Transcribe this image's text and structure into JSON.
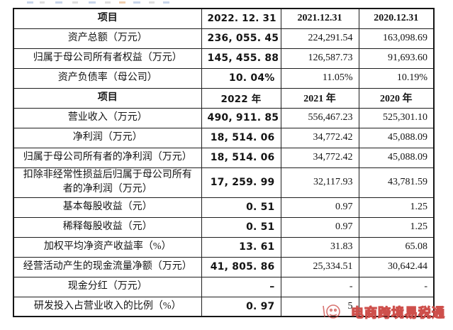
{
  "table": {
    "rows": [
      {
        "type": "head",
        "label": "项目",
        "v2022": "2022. 12. 31",
        "v2021": "2021.12.31",
        "v2020": "2020.12.31"
      },
      {
        "type": "data",
        "label": "资产总额（万元）",
        "v2022": "236, 055. 45",
        "v2021": "224,291.54",
        "v2020": "163,098.69"
      },
      {
        "type": "data",
        "label": "归属于母公司所有者权益（万元）",
        "v2022": "145, 455. 88",
        "v2021": "126,587.73",
        "v2020": "91,693.60"
      },
      {
        "type": "data",
        "label": "资产负债率（母公司）",
        "v2022": "10. 04%",
        "v2021": "11.05%",
        "v2020": "10.19%"
      },
      {
        "type": "head",
        "label": "项目",
        "v2022": "2022 年",
        "v2021": "2021 年",
        "v2020": "2020 年"
      },
      {
        "type": "data",
        "label": "营业收入（万元）",
        "v2022": "490, 911. 85",
        "v2021": "556,467.23",
        "v2020": "525,301.10"
      },
      {
        "type": "data",
        "label": "净利润（万元）",
        "v2022": "18, 514. 06",
        "v2021": "34,772.42",
        "v2020": "45,088.09"
      },
      {
        "type": "data",
        "label": "归属于母公司所有者的净利润（万元）",
        "v2022": "18, 514. 06",
        "v2021": "34,772.42",
        "v2020": "45,088.09"
      },
      {
        "type": "data",
        "tall": true,
        "label": "扣除非经常性损益后归属于母公司所有者的净利润（万元）",
        "v2022": "17, 259. 99",
        "v2021": "32,117.93",
        "v2020": "43,781.59"
      },
      {
        "type": "data",
        "label": "基本每股收益（元）",
        "v2022": "0. 51",
        "v2021": "0.97",
        "v2020": "1.25"
      },
      {
        "type": "data",
        "label": "稀释每股收益（元）",
        "v2022": "0. 51",
        "v2021": "0.97",
        "v2020": "1.25"
      },
      {
        "type": "data",
        "label": "加权平均净资产收益率（%）",
        "v2022": "13. 61",
        "v2021": "31.83",
        "v2020": "65.08"
      },
      {
        "type": "data",
        "label": "经营活动产生的现金流量净额（万元）",
        "v2022": "41, 805. 86",
        "v2021": "25,334.51",
        "v2020": "30,642.44"
      },
      {
        "type": "data",
        "label": "现金分红（万元）",
        "v2022": "–",
        "v2021": "-",
        "v2020": "-"
      },
      {
        "type": "data",
        "label": "研发投入占营业收入的比例（%）",
        "v2022": "0. 97",
        "v2021": "5",
        "v2020": "",
        "obscured": true
      }
    ]
  },
  "watermark": {
    "text": "电商跨境易税通",
    "color": "#c93e3a"
  }
}
